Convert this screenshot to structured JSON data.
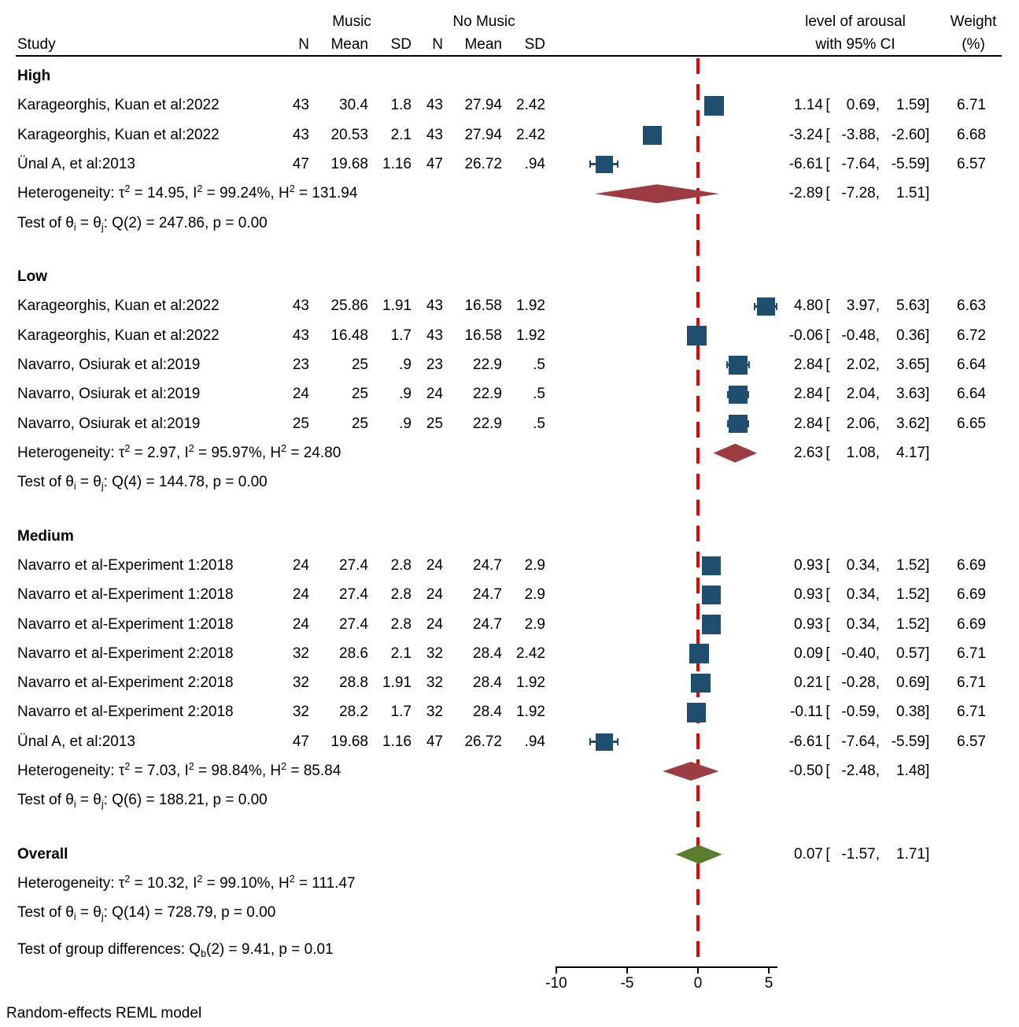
{
  "header": {
    "study": "Study",
    "music": "Music",
    "no_music": "No Music",
    "n1": "N",
    "mean1": "Mean",
    "sd1": "SD",
    "n2": "N",
    "mean2": "Mean",
    "sd2": "SD",
    "effect_line1": "level of arousal",
    "effect_line2": "with 95% CI",
    "weight_line1": "Weight",
    "weight_line2": "(%)"
  },
  "footer": {
    "model_note": "Random-effects REML model"
  },
  "chart_data": {
    "type": "forest",
    "title": "",
    "xlabel": "",
    "effect_label": "level of arousal with 95% CI",
    "x_axis": {
      "ticks": [
        -10,
        -5,
        0,
        5
      ],
      "range": [
        -10,
        5.6
      ],
      "reference_line": 0
    },
    "legend_position": "none",
    "grid": false,
    "colors": {
      "marker": "#1F4E6E",
      "subgroup_diamond": "#9D3B42",
      "overall_diamond": "#5A7D2D",
      "reference_line": "#EE0000",
      "text": "#000000",
      "background": "#FFFFFF"
    },
    "groups": [
      {
        "label": "High",
        "rows": [
          {
            "study": "Karageorghis, Kuan et al:2022",
            "n1": "43",
            "mean1": "30.4",
            "sd1": "1.8",
            "n2": "43",
            "mean2": "27.94",
            "sd2": "2.42",
            "est": "1.14",
            "lo": "0.69",
            "hi": "1.59",
            "weight": "6.71"
          },
          {
            "study": "Karageorghis, Kuan et al:2022",
            "n1": "43",
            "mean1": "20.53",
            "sd1": "2.1",
            "n2": "43",
            "mean2": "27.94",
            "sd2": "2.42",
            "est": "-3.24",
            "lo": "-3.88",
            "hi": "-2.60",
            "weight": "6.68"
          },
          {
            "study": "Ünal A, et al:2013",
            "n1": "47",
            "mean1": "19.68",
            "sd1": "1.16",
            "n2": "47",
            "mean2": "26.72",
            "sd2": ".94",
            "est": "-6.61",
            "lo": "-7.64",
            "hi": "-5.59",
            "weight": "6.57"
          }
        ],
        "summary": {
          "est": "-2.89",
          "lo": "-7.28",
          "hi": "1.51"
        },
        "het_segments": [
          {
            "t": "Heterogeneity: τ"
          },
          {
            "t": "2",
            "s": "sup"
          },
          {
            "t": " = 14.95, I"
          },
          {
            "t": "2",
            "s": "sup"
          },
          {
            "t": " = 99.24%, H"
          },
          {
            "t": "2",
            "s": "sup"
          },
          {
            "t": " = 131.94"
          }
        ],
        "test_segments": [
          {
            "t": "Test of θ"
          },
          {
            "t": "i",
            "s": "sub"
          },
          {
            "t": " = θ"
          },
          {
            "t": "j",
            "s": "sub"
          },
          {
            "t": ": Q(2) = 247.86, p = 0.00"
          }
        ]
      },
      {
        "label": "Low",
        "rows": [
          {
            "study": "Karageorghis, Kuan et al:2022",
            "n1": "43",
            "mean1": "25.86",
            "sd1": "1.91",
            "n2": "43",
            "mean2": "16.58",
            "sd2": "1.92",
            "est": "4.80",
            "lo": "3.97",
            "hi": "5.63",
            "weight": "6.63"
          },
          {
            "study": "Karageorghis, Kuan et al:2022",
            "n1": "43",
            "mean1": "16.48",
            "sd1": "1.7",
            "n2": "43",
            "mean2": "16.58",
            "sd2": "1.92",
            "est": "-0.06",
            "lo": "-0.48",
            "hi": "0.36",
            "weight": "6.72"
          },
          {
            "study": "Navarro, Osiurak et al:2019",
            "n1": "23",
            "mean1": "25",
            "sd1": ".9",
            "n2": "23",
            "mean2": "22.9",
            "sd2": ".5",
            "est": "2.84",
            "lo": "2.02",
            "hi": "3.65",
            "weight": "6.64"
          },
          {
            "study": "Navarro, Osiurak et al:2019",
            "n1": "24",
            "mean1": "25",
            "sd1": ".9",
            "n2": "24",
            "mean2": "22.9",
            "sd2": ".5",
            "est": "2.84",
            "lo": "2.04",
            "hi": "3.63",
            "weight": "6.64"
          },
          {
            "study": "Navarro, Osiurak et al:2019",
            "n1": "25",
            "mean1": "25",
            "sd1": ".9",
            "n2": "25",
            "mean2": "22.9",
            "sd2": ".5",
            "est": "2.84",
            "lo": "2.06",
            "hi": "3.62",
            "weight": "6.65"
          }
        ],
        "summary": {
          "est": "2.63",
          "lo": "1.08",
          "hi": "4.17"
        },
        "het_segments": [
          {
            "t": "Heterogeneity: τ"
          },
          {
            "t": "2",
            "s": "sup"
          },
          {
            "t": " = 2.97, I"
          },
          {
            "t": "2",
            "s": "sup"
          },
          {
            "t": " = 95.97%, H"
          },
          {
            "t": "2",
            "s": "sup"
          },
          {
            "t": " = 24.80"
          }
        ],
        "test_segments": [
          {
            "t": "Test of θ"
          },
          {
            "t": "i",
            "s": "sub"
          },
          {
            "t": " = θ"
          },
          {
            "t": "j",
            "s": "sub"
          },
          {
            "t": ": Q(4) = 144.78, p = 0.00"
          }
        ]
      },
      {
        "label": "Medium",
        "rows": [
          {
            "study": "Navarro et al-Experiment 1:2018",
            "n1": "24",
            "mean1": "27.4",
            "sd1": "2.8",
            "n2": "24",
            "mean2": "24.7",
            "sd2": "2.9",
            "est": "0.93",
            "lo": "0.34",
            "hi": "1.52",
            "weight": "6.69"
          },
          {
            "study": "Navarro et al-Experiment 1:2018",
            "n1": "24",
            "mean1": "27.4",
            "sd1": "2.8",
            "n2": "24",
            "mean2": "24.7",
            "sd2": "2.9",
            "est": "0.93",
            "lo": "0.34",
            "hi": "1.52",
            "weight": "6.69"
          },
          {
            "study": "Navarro et al-Experiment 1:2018",
            "n1": "24",
            "mean1": "27.4",
            "sd1": "2.8",
            "n2": "24",
            "mean2": "24.7",
            "sd2": "2.9",
            "est": "0.93",
            "lo": "0.34",
            "hi": "1.52",
            "weight": "6.69"
          },
          {
            "study": "Navarro et al-Experiment 2:2018",
            "n1": "32",
            "mean1": "28.6",
            "sd1": "2.1",
            "n2": "32",
            "mean2": "28.4",
            "sd2": "2.42",
            "est": "0.09",
            "lo": "-0.40",
            "hi": "0.57",
            "weight": "6.71"
          },
          {
            "study": "Navarro et al-Experiment 2:2018",
            "n1": "32",
            "mean1": "28.8",
            "sd1": "1.91",
            "n2": "32",
            "mean2": "28.4",
            "sd2": "1.92",
            "est": "0.21",
            "lo": "-0.28",
            "hi": "0.69",
            "weight": "6.71"
          },
          {
            "study": "Navarro et al-Experiment 2:2018",
            "n1": "32",
            "mean1": "28.2",
            "sd1": "1.7",
            "n2": "32",
            "mean2": "28.4",
            "sd2": "1.92",
            "est": "-0.11",
            "lo": "-0.59",
            "hi": "0.38",
            "weight": "6.71"
          },
          {
            "study": "Ünal A, et al:2013",
            "n1": "47",
            "mean1": "19.68",
            "sd1": "1.16",
            "n2": "47",
            "mean2": "26.72",
            "sd2": ".94",
            "est": "-6.61",
            "lo": "-7.64",
            "hi": "-5.59",
            "weight": "6.57"
          }
        ],
        "summary": {
          "est": "-0.50",
          "lo": "-2.48",
          "hi": "1.48"
        },
        "het_segments": [
          {
            "t": "Heterogeneity: τ"
          },
          {
            "t": "2",
            "s": "sup"
          },
          {
            "t": " = 7.03, I"
          },
          {
            "t": "2",
            "s": "sup"
          },
          {
            "t": " = 98.84%, H"
          },
          {
            "t": "2",
            "s": "sup"
          },
          {
            "t": " = 85.84"
          }
        ],
        "test_segments": [
          {
            "t": "Test of θ"
          },
          {
            "t": "i",
            "s": "sub"
          },
          {
            "t": " = θ"
          },
          {
            "t": "j",
            "s": "sub"
          },
          {
            "t": ": Q(6) = 188.21, p = 0.00"
          }
        ]
      }
    ],
    "overall": {
      "label": "Overall",
      "summary": {
        "est": "0.07",
        "lo": "-1.57",
        "hi": "1.71"
      },
      "het_segments": [
        {
          "t": "Heterogeneity: τ"
        },
        {
          "t": "2",
          "s": "sup"
        },
        {
          "t": " = 10.32, I"
        },
        {
          "t": "2",
          "s": "sup"
        },
        {
          "t": " = 99.10%, H"
        },
        {
          "t": "2",
          "s": "sup"
        },
        {
          "t": " = 111.47"
        }
      ],
      "test_segments": [
        {
          "t": "Test of θ"
        },
        {
          "t": "i",
          "s": "sub"
        },
        {
          "t": " = θ"
        },
        {
          "t": "j",
          "s": "sub"
        },
        {
          "t": ": Q(14) = 728.79, p = 0.00"
        }
      ]
    },
    "group_diff_segments": [
      {
        "t": "Test of group differences: Q"
      },
      {
        "t": "b",
        "s": "sub"
      },
      {
        "t": "(2) = 9.41, p = 0.01"
      }
    ]
  }
}
